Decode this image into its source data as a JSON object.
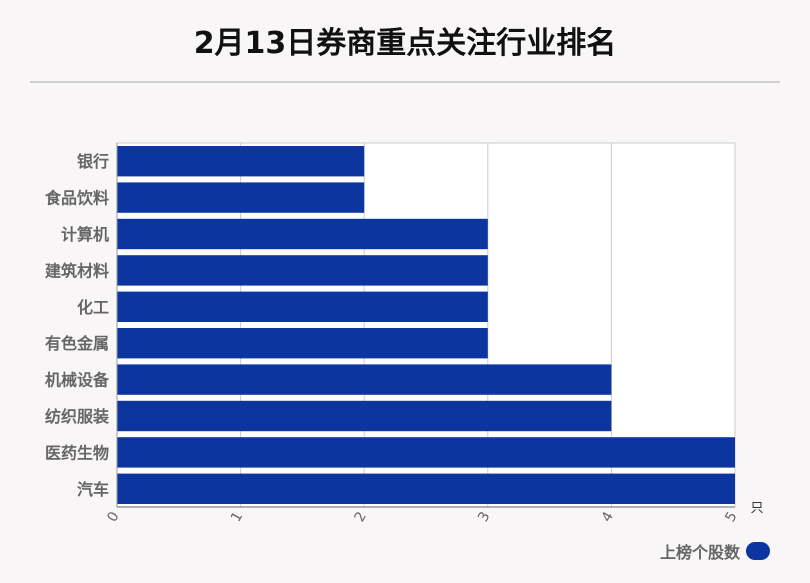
{
  "chart_data": {
    "type": "bar",
    "orientation": "horizontal",
    "title": "2月13日券商重点关注行业排名",
    "categories": [
      "银行",
      "食品饮料",
      "计算机",
      "建筑材料",
      "化工",
      "有色金属",
      "机械设备",
      "纺织服装",
      "医药生物",
      "汽车"
    ],
    "series": [
      {
        "name": "上榜个股数",
        "values": [
          2,
          2,
          3,
          3,
          3,
          3,
          4,
          4,
          5,
          5
        ]
      }
    ],
    "x_ticks": [
      "0",
      "1",
      "2",
      "3",
      "4",
      "5"
    ],
    "xlim": [
      0,
      5
    ],
    "xunit": "只",
    "grid": true,
    "legend_position": "bottom-right",
    "bar_color": "#0d35a0"
  }
}
